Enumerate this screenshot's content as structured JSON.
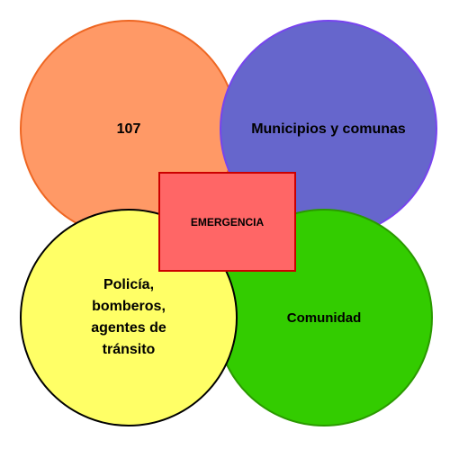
{
  "diagram": {
    "nodes": [
      {
        "id": "top-left",
        "label": "107",
        "color": "#ff9966"
      },
      {
        "id": "top-right",
        "label": "Municipios y comunas",
        "color": "#6666cc"
      },
      {
        "id": "bottom-right",
        "label": "Comunidad",
        "color": "#33cc00"
      },
      {
        "id": "bottom-left",
        "label": "Policía,\nbomberos,\nagentes de\ntránsito",
        "color": "#ffff66"
      }
    ],
    "center": {
      "label": "EMERGENCIA",
      "color": "#ff6666",
      "border": "#cc0000"
    }
  }
}
